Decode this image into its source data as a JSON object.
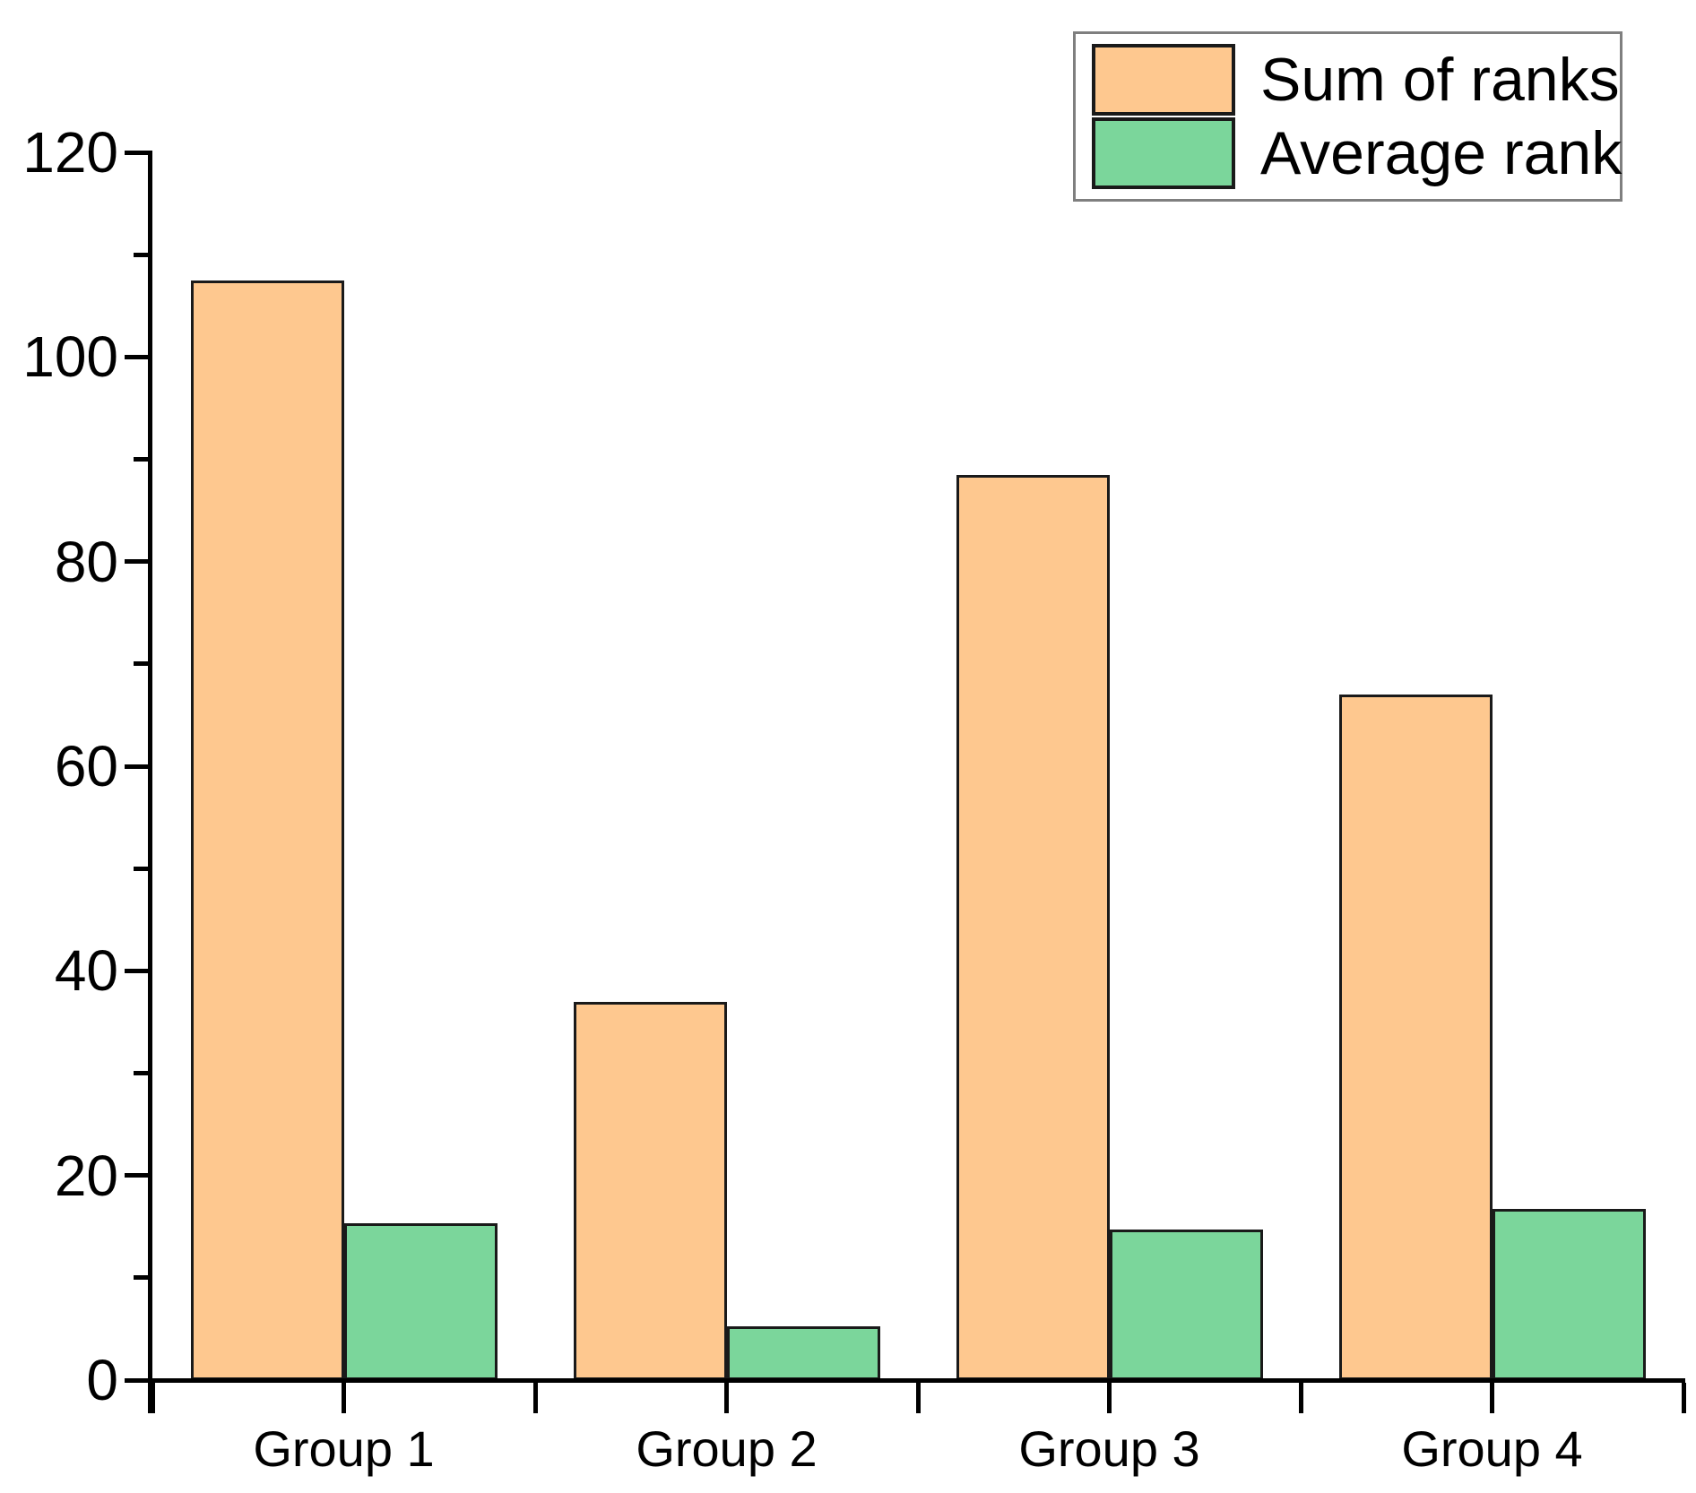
{
  "chart_data": {
    "type": "bar",
    "title": "",
    "xlabel": "",
    "ylabel": "",
    "categories": [
      "Group 1",
      "Group 2",
      "Group 3",
      "Group 4"
    ],
    "series": [
      {
        "name": "Sum of ranks",
        "color": "#FEC88F",
        "values": [
          107.5,
          37,
          88.5,
          67
        ]
      },
      {
        "name": "Average rank",
        "color": "#7BD69B",
        "values": [
          15.36,
          5.29,
          14.75,
          16.75
        ]
      }
    ],
    "ylim": [
      0,
      120
    ],
    "y_major_ticks": [
      0,
      20,
      40,
      60,
      80,
      100,
      120
    ],
    "y_major_tick_labels": [
      "0",
      "20",
      "40",
      "60",
      "80",
      "100",
      "120"
    ],
    "y_minor_ticks": [
      10,
      30,
      50,
      70,
      90,
      110
    ],
    "grid": false,
    "legend_position": "top-right",
    "bar_edge_color": "#1a1a1a",
    "axis_color": "#000000",
    "background_color": "#ffffff",
    "legend_border_color": "#7f7f7f"
  },
  "legend": {
    "items": [
      {
        "label": "Sum of ranks",
        "swatch_color": "#FEC88F"
      },
      {
        "label": "Average rank",
        "swatch_color": "#7BD69B"
      }
    ]
  }
}
